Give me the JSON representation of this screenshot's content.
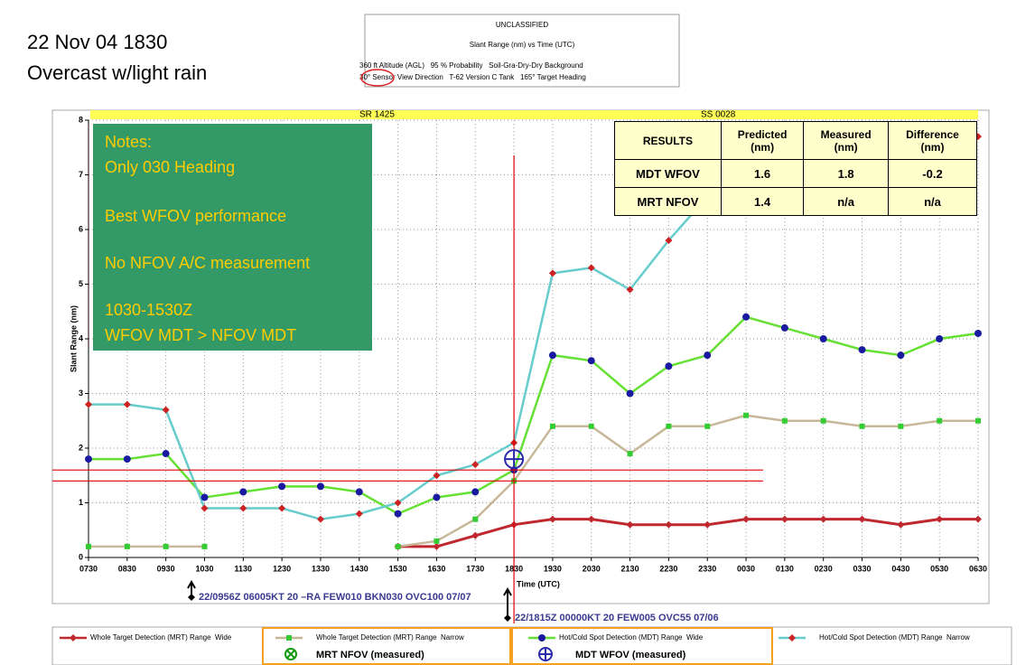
{
  "slide_title": [
    "22 Nov 04 1830",
    "Overcast w/light rain"
  ],
  "header": {
    "classification": "UNCLASSIFIED",
    "title": "Slant Range (nm) vs Time (UTC)",
    "line1": "360 ft Altitude (AGL)   95 % Probability   Soil-Gra-Dry-Dry Background",
    "line2": "30° Sensor View Direction   T-62 Version C Tank   165° Target Heading"
  },
  "chart_data": {
    "type": "line",
    "x_label": "Time (UTC)",
    "y_label": "Slant Range (nm)",
    "categories": [
      "0730",
      "0830",
      "0930",
      "1030",
      "1130",
      "1230",
      "1330",
      "1430",
      "1530",
      "1630",
      "1730",
      "1830",
      "1930",
      "2030",
      "2130",
      "2230",
      "2330",
      "0030",
      "0130",
      "0230",
      "0330",
      "0430",
      "0530",
      "0630"
    ],
    "series": [
      {
        "name": "Whole Target Detection (MRT) Range  Wide",
        "color": "#c0282f",
        "marker": "diamond",
        "marker_color": "#c0282f",
        "values": [
          null,
          null,
          null,
          null,
          null,
          null,
          null,
          null,
          0.2,
          0.2,
          0.4,
          0.6,
          0.7,
          0.7,
          0.6,
          0.6,
          0.6,
          0.7,
          0.7,
          0.7,
          0.7,
          0.6,
          0.7,
          0.7
        ]
      },
      {
        "name": "Whole Target Detection (MRT) Range  Narrow",
        "color": "#c8b89a",
        "marker": "square",
        "marker_color": "#33cc33",
        "values": [
          0.2,
          0.2,
          0.2,
          0.2,
          null,
          null,
          null,
          null,
          0.2,
          0.3,
          0.7,
          1.4,
          2.4,
          2.4,
          1.9,
          2.4,
          2.4,
          2.6,
          2.5,
          2.5,
          2.4,
          2.4,
          2.5,
          2.5
        ]
      },
      {
        "name": "Hot/Cold Spot Detection (MDT) Range  Wide",
        "color": "#66e033",
        "marker": "circle",
        "marker_color": "#1a1aa0",
        "values": [
          1.8,
          1.8,
          1.9,
          1.1,
          1.2,
          1.3,
          1.3,
          1.2,
          0.8,
          1.1,
          1.2,
          1.6,
          3.7,
          3.6,
          3.0,
          3.5,
          3.7,
          4.4,
          4.2,
          4.0,
          3.8,
          3.7,
          4.0,
          4.1
        ]
      },
      {
        "name": "Hot/Cold Spot Detection (MDT) Range  Narrow",
        "color": "#66cccc",
        "marker": "diamond",
        "marker_color": "#cc2222",
        "values": [
          2.8,
          2.8,
          2.7,
          0.9,
          0.9,
          0.9,
          0.7,
          0.8,
          1.0,
          1.5,
          1.7,
          2.1,
          5.2,
          5.3,
          4.9,
          5.8,
          6.6,
          7.2,
          7.3,
          7.3,
          7.4,
          7.5,
          7.6,
          7.7
        ]
      }
    ],
    "ylim": [
      0,
      8
    ],
    "yticks": [
      0,
      1,
      2,
      3,
      4,
      5,
      6,
      7,
      8
    ],
    "grid": true,
    "sun_labels": [
      "SR 1425",
      "SS 0028"
    ],
    "event_category": "1830",
    "predicted_lines": [
      1.6,
      1.4
    ],
    "measured_point": {
      "x": "1830",
      "y": 1.8
    }
  },
  "notes": [
    "Notes:",
    "Only 030 Heading",
    "Best WFOV performance",
    "No NFOV A/C measurement",
    "1030-1530Z",
    "WFOV MDT > NFOV MDT"
  ],
  "results": {
    "header": [
      [
        "RESULTS"
      ],
      [
        "Predicted",
        "(nm)"
      ],
      [
        "Measured",
        "(nm)"
      ],
      [
        "Difference",
        "(nm)"
      ]
    ],
    "rows": [
      [
        "MDT WFOV",
        "1.6",
        "1.8",
        "-0.2"
      ],
      [
        "MRT NFOV",
        "1.4",
        "n/a",
        "n/a"
      ]
    ]
  },
  "weather": [
    "22/0956Z 06005KT 20 –RA FEW010 BKN030 OVC100 07/07",
    "22/1815Z 00000KT 20 FEW005 OVC55 07/06"
  ],
  "measured_legend": [
    "MRT NFOV (measured)",
    "MDT WFOV (measured)"
  ]
}
